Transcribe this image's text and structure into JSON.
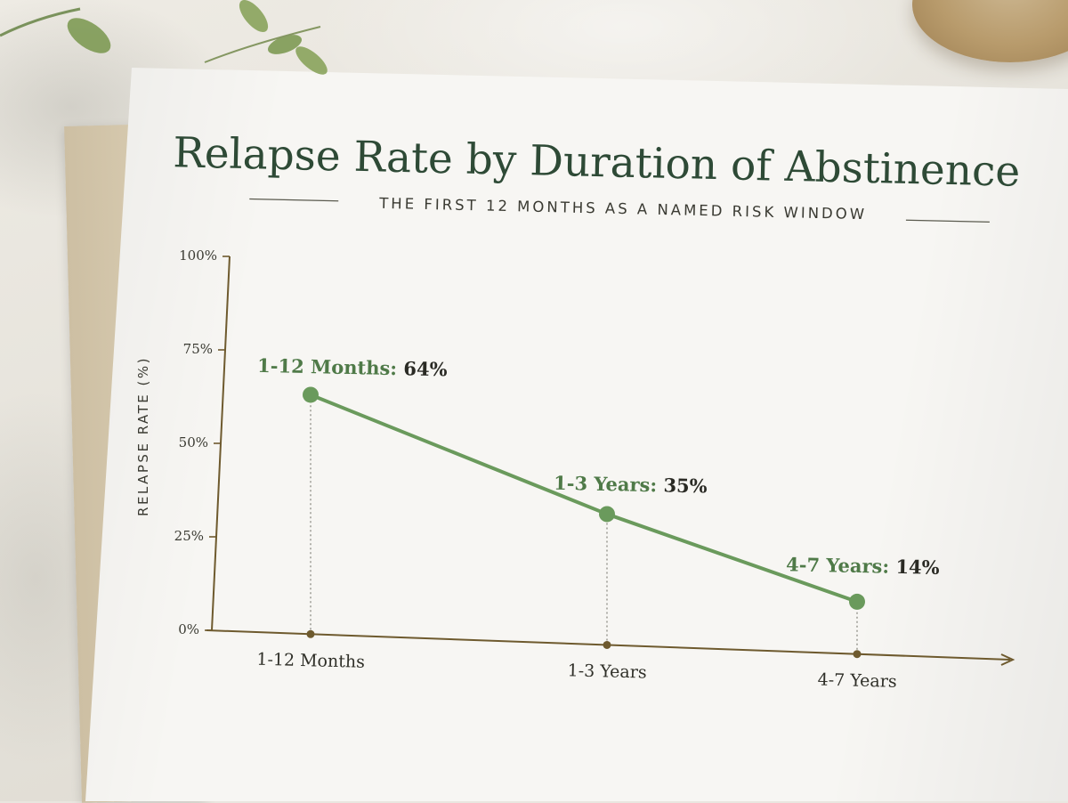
{
  "colors": {
    "line": "#6a9a5c",
    "axis": "#6e5a2e",
    "title": "#2e4a36",
    "label_category": "#4f7a48"
  },
  "chart_data": {
    "type": "line",
    "title": "Relapse Rate by Duration of Abstinence",
    "subtitle": "THE FIRST 12 MONTHS AS A NAMED RISK WINDOW",
    "xlabel": "",
    "ylabel": "RELAPSE RATE (%)",
    "categories": [
      "1-12 Months",
      "1-3 Years",
      "4-7 Years"
    ],
    "values": [
      64,
      35,
      14
    ],
    "value_labels": [
      "64%",
      "35%",
      "14%"
    ],
    "ylim": [
      0,
      100
    ],
    "yticks": [
      "0%",
      "25%",
      "50%",
      "75%",
      "100%"
    ],
    "grid": false,
    "legend": "none"
  }
}
